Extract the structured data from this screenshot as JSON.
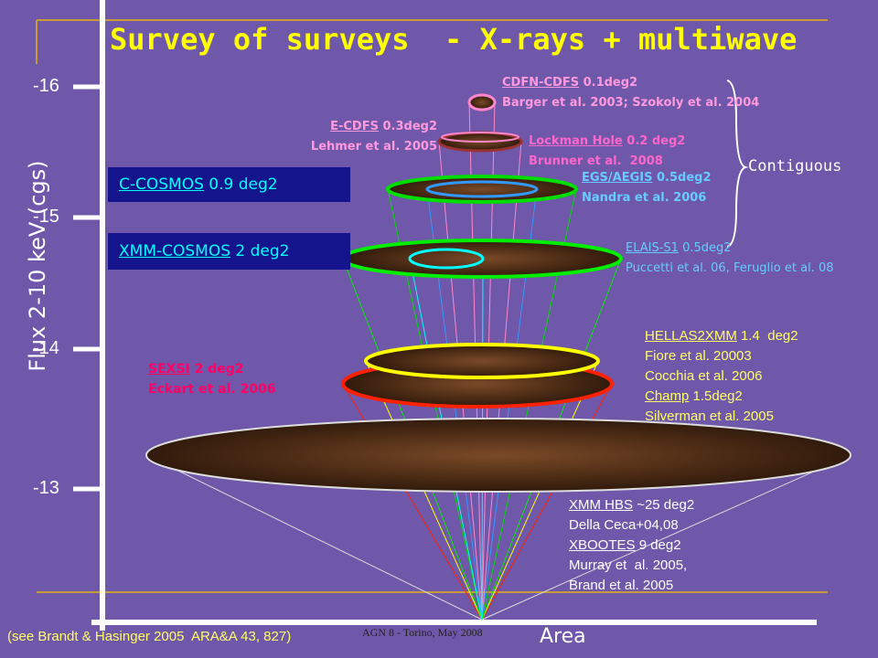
{
  "title": "Survey of surveys  - X-rays + multiwave",
  "y_axis": {
    "label": "Flux 2-10 keV (cgs)",
    "ticks": [
      "-16",
      "-15",
      "-14",
      "-13"
    ]
  },
  "x_axis": {
    "label": "Area"
  },
  "surveys": [
    {
      "name": "CDFN-CDFS",
      "area": "0.1deg2",
      "refs": [
        "Barger et al. 2003; Szokoly et al. 2004"
      ]
    },
    {
      "name": "E-CDFS",
      "area": "0.3deg2",
      "refs": [
        "Lehmer et al. 2005"
      ]
    },
    {
      "name": "Lockman Hole",
      "area": "0.2 deg2",
      "refs": [
        "Brunner et al.  2008"
      ]
    },
    {
      "name": "EGS/AEGIS",
      "area": "0.5deg2",
      "refs": [
        "Nandra et al. 2006"
      ]
    },
    {
      "name": "C-COSMOS",
      "area": "0.9 deg2",
      "refs": []
    },
    {
      "name": "XMM-COSMOS",
      "area": "2 deg2",
      "refs": []
    },
    {
      "name": "ELAIS-S1",
      "area": "0.5deg2",
      "refs": [
        "Puccetti et al. 06, Feruglio et al. 08"
      ]
    },
    {
      "name": "HELLAS2XMM",
      "area": "1.4  deg2",
      "refs": [
        "Fiore et al. 20003",
        "Cocchia et al. 2006"
      ]
    },
    {
      "name": "Champ",
      "area": "1.5deg2",
      "refs": [
        "Silverman et al. 2005"
      ]
    },
    {
      "name": "SEXSI",
      "area": "2 deg2",
      "refs": [
        "Eckart et al. 2006"
      ]
    },
    {
      "name": "XMM HBS",
      "area": "~25 deg2",
      "refs": [
        "Della Ceca+04,08"
      ]
    },
    {
      "name": "XBOOTES",
      "area": "9 deg2",
      "refs": [
        "Murray et  al. 2005,",
        "Brand et al. 2005"
      ]
    }
  ],
  "bracket_label": "Contiguous",
  "footer": "AGN 8 - Torino, May 2008",
  "citation": "(see Brandt & Hasinger 2005  ARA&A 43, 827)"
}
